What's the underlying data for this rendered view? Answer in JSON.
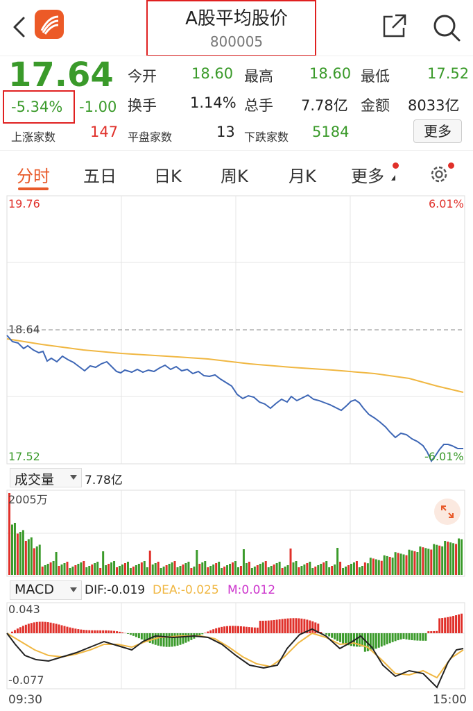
{
  "header": {
    "title": "A股平均股价",
    "code": "800005"
  },
  "quote": {
    "price": "17.64",
    "pct_change": "-5.34%",
    "change": "-1.00",
    "stats": [
      {
        "label": "今开",
        "value": "18.60"
      },
      {
        "label": "最高",
        "value": "18.60"
      },
      {
        "label": "最低",
        "value": "17.52"
      },
      {
        "label": "换手",
        "value": "1.14%"
      },
      {
        "label": "总手",
        "value": "7.78亿"
      },
      {
        "label": "金额",
        "value": "8033亿"
      }
    ],
    "breadth": [
      {
        "label": "上涨家数",
        "value": "147"
      },
      {
        "label": "平盘家数",
        "value": "13"
      },
      {
        "label": "下跌家数",
        "value": "5184"
      }
    ],
    "more_label": "更多"
  },
  "tabs": [
    {
      "label": "分时"
    },
    {
      "label": "五日"
    },
    {
      "label": "日K"
    },
    {
      "label": "周K"
    },
    {
      "label": "月K"
    },
    {
      "label": "更多"
    }
  ],
  "colors": {
    "up": "#e0302a",
    "down": "#3a9a2a",
    "price_line": "#3d66b5",
    "avg_line": "#f0b742",
    "accent": "#e85a2a",
    "macd_m": "#cc33cc"
  },
  "price_chart": {
    "y_top_label": "19.76",
    "y_mid_label": "18.64",
    "y_bottom_label": "17.52",
    "pct_top_label": "6.01%",
    "pct_bottom_label": "-6.01%"
  },
  "volume": {
    "selector_label": "成交量",
    "total": "7.78亿",
    "max_label": "2005万"
  },
  "macd": {
    "selector_label": "MACD",
    "dif": "DIF:-0.019",
    "dea": "DEA:-0.025",
    "m": "M:0.012",
    "top_label": "0.043",
    "bottom_label": "-0.077"
  },
  "time_axis": {
    "start": "09:30",
    "end": "15:00"
  }
}
